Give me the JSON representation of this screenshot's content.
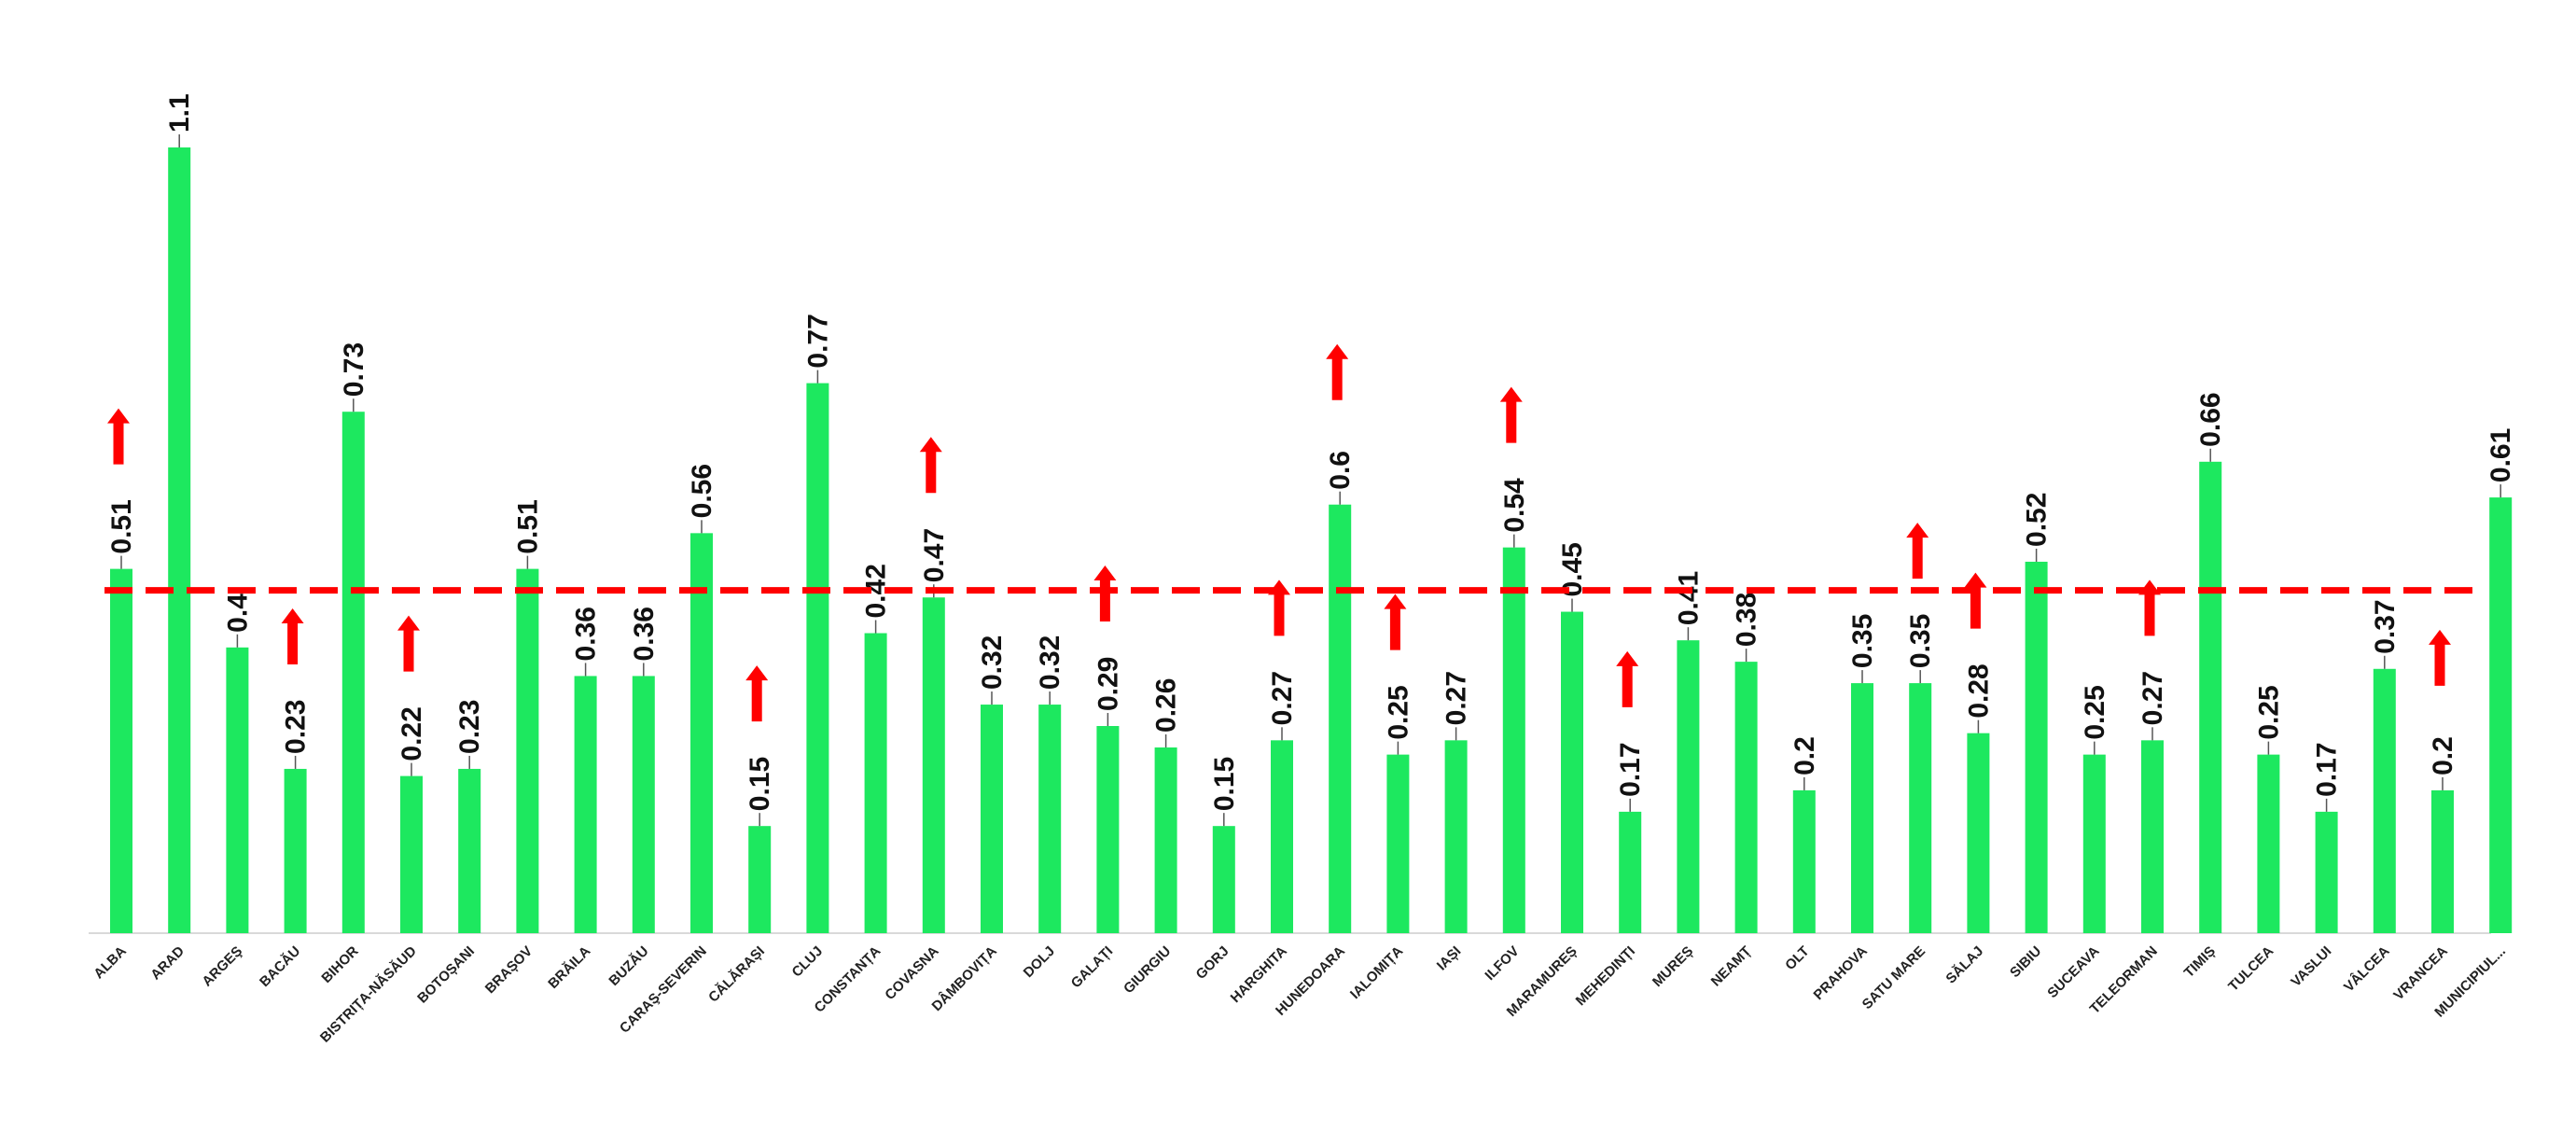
{
  "chart_data": {
    "type": "bar",
    "title": "",
    "xlabel": "",
    "ylabel": "",
    "ylim": [
      0,
      1.2
    ],
    "grid": false,
    "legend": "none",
    "bar_color": "#1de85f",
    "reference_line": {
      "value": 0.48,
      "style": "dashed",
      "color": "#ff0000"
    },
    "arrow_color": "#ff0000",
    "categories": [
      "ALBA",
      "ARAD",
      "ARGEŞ",
      "BACĂU",
      "BIHOR",
      "BISTRIȚA-NĂSĂUD",
      "BOTOȘANI",
      "BRAȘOV",
      "BRĂILA",
      "BUZĂU",
      "CARAŞ-SEVERIN",
      "CĂLĂRAȘI",
      "CLUJ",
      "CONSTANȚA",
      "COVASNA",
      "DÂMBOVIȚA",
      "DOLJ",
      "GALAȚI",
      "GIURGIU",
      "GORJ",
      "HARGHITA",
      "HUNEDOARA",
      "IALOMIȚA",
      "IAȘI",
      "ILFOV",
      "MARAMUREȘ",
      "MEHEDINȚI",
      "MUREȘ",
      "NEAMȚ",
      "OLT",
      "PRAHOVA",
      "SATU MARE",
      "SĂLAJ",
      "SIBIU",
      "SUCEAVA",
      "TELEORMAN",
      "TIMIȘ",
      "TULCEA",
      "VASLUI",
      "VÂLCEA",
      "VRANCEA",
      "MUNICIPIUL..."
    ],
    "values": [
      0.51,
      1.1,
      0.4,
      0.23,
      0.73,
      0.22,
      0.23,
      0.51,
      0.36,
      0.36,
      0.56,
      0.15,
      0.77,
      0.42,
      0.47,
      0.32,
      0.32,
      0.29,
      0.26,
      0.15,
      0.27,
      0.6,
      0.25,
      0.27,
      0.54,
      0.45,
      0.17,
      0.41,
      0.38,
      0.2,
      0.35,
      0.35,
      0.28,
      0.52,
      0.25,
      0.27,
      0.66,
      0.25,
      0.17,
      0.37,
      0.2,
      0.61
    ],
    "value_labels": [
      "0.51",
      "1.1",
      "0.4",
      "0.23",
      "0.73",
      "0.22",
      "0.23",
      "0.51",
      "0.36",
      "0.36",
      "0.56",
      "0.15",
      "0.77",
      "0.42",
      "0.47",
      "0.32",
      "0.32",
      "0.29",
      "0.26",
      "0.15",
      "0.27",
      "0.6",
      "0.25",
      "0.27",
      "0.54",
      "0.45",
      "0.17",
      "0.41",
      "0.38",
      "0.2",
      "0.35",
      "0.35",
      "0.28",
      "0.52",
      "0.25",
      "0.27",
      "0.66",
      "0.25",
      "0.17",
      "0.37",
      "0.2",
      "0.61"
    ],
    "up_arrows": [
      "ALBA",
      "BACĂU",
      "BISTRIȚA-NĂSĂUD",
      "CĂLĂRAȘI",
      "COVASNA",
      "GALAȚI",
      "HARGHITA",
      "HUNEDOARA",
      "IALOMIȚA",
      "ILFOV",
      "MEHEDINȚI",
      "SATU MARE",
      "SĂLAJ",
      "TELEORMAN",
      "VRANCEA"
    ]
  }
}
